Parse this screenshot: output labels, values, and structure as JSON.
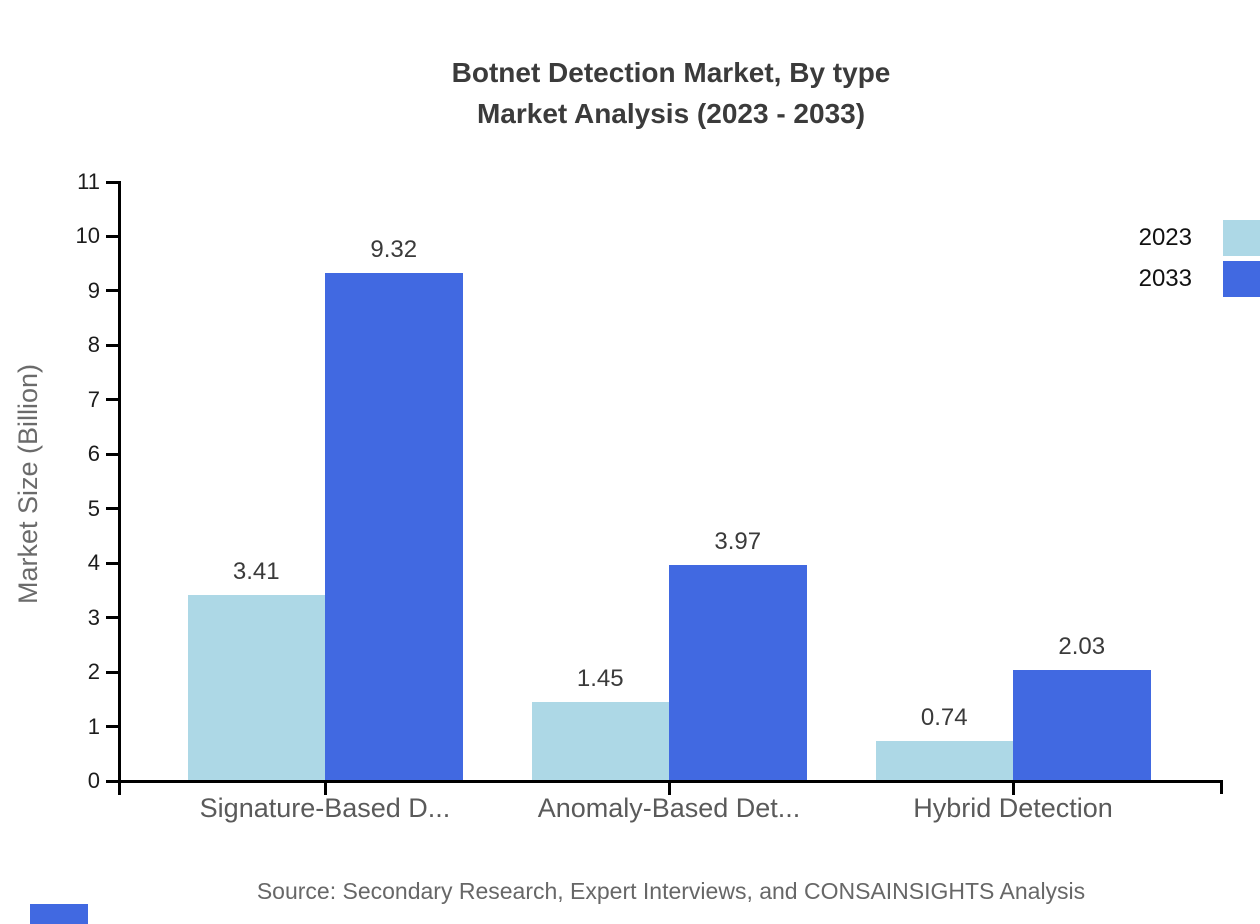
{
  "chart_data": {
    "type": "bar",
    "title": "Botnet Detection Market, By type Market Analysis (2023 - 2033)",
    "title_lines": [
      "Botnet Detection Market, By type",
      "Market Analysis (2023 - 2033)"
    ],
    "categories": [
      "Signature-Based D...",
      "Anomaly-Based Det...",
      "Hybrid Detection"
    ],
    "series": [
      {
        "name": "2023",
        "color": "#ADD8E6",
        "values": [
          3.41,
          1.45,
          0.74
        ]
      },
      {
        "name": "2033",
        "color": "#4169E1",
        "values": [
          9.32,
          3.97,
          2.03
        ]
      }
    ],
    "xlabel": "",
    "ylabel": "Market Size (Billion)",
    "ylim": [
      0,
      11
    ],
    "yticks": [
      0,
      1,
      2,
      3,
      4,
      5,
      6,
      7,
      8,
      9,
      10,
      11
    ],
    "grid": false,
    "legend_position": "top-right",
    "value_label_decimals": 2,
    "source": "Source: Secondary Research, Expert Interviews, and CONSAINSIGHTS Analysis"
  },
  "brand": {
    "color": "#4169E1"
  }
}
